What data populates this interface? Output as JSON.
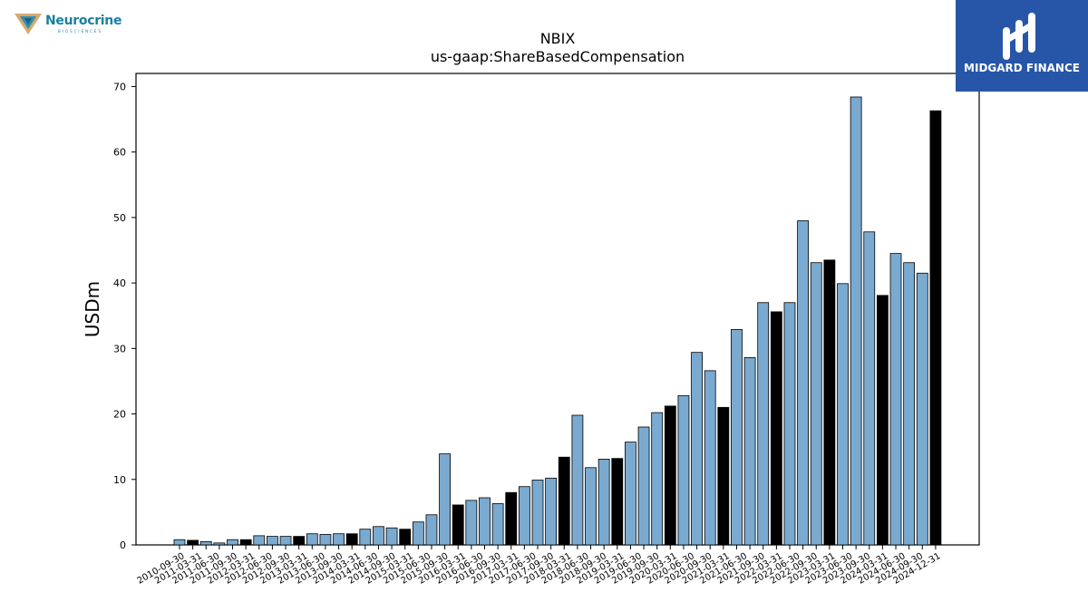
{
  "branding": {
    "company_logo_text": "Neurocrine",
    "company_logo_subtext": "BIOSCIENCES",
    "publisher_badge_text": "MIDGARD FINANCE"
  },
  "chart_data": {
    "type": "bar",
    "title": "NBIX",
    "subtitle": "us-gaap:ShareBasedCompensation",
    "xlabel": "",
    "ylabel": "USDm",
    "ylim": [
      0,
      72
    ],
    "yticks": [
      0,
      10,
      20,
      30,
      40,
      50,
      60,
      70
    ],
    "grid": false,
    "colors": {
      "quarterly": "#7aaad0",
      "annual": "#000000",
      "edge": "#000000"
    },
    "categories": [
      "2010-09-30",
      "2010-12-31",
      "2011-03-31",
      "2011-06-30",
      "2011-09-30",
      "2011-12-31",
      "2012-03-31",
      "2012-06-30",
      "2012-09-30",
      "2012-12-31",
      "2013-03-31",
      "2013-06-30",
      "2013-09-30",
      "2013-12-31",
      "2014-03-31",
      "2014-06-30",
      "2014-09-30",
      "2014-12-31",
      "2015-03-31",
      "2015-06-30",
      "2015-09-30",
      "2015-12-31",
      "2016-03-31",
      "2016-06-30",
      "2016-09-30",
      "2016-12-31",
      "2017-03-31",
      "2017-06-30",
      "2017-09-30",
      "2017-12-31",
      "2018-03-31",
      "2018-06-30",
      "2018-09-30",
      "2018-12-31",
      "2019-03-31",
      "2019-06-30",
      "2019-09-30",
      "2019-12-31",
      "2020-03-31",
      "2020-06-30",
      "2020-09-30",
      "2020-12-31",
      "2021-03-31",
      "2021-06-30",
      "2021-09-30",
      "2021-12-31",
      "2022-03-31",
      "2022-06-30",
      "2022-09-30",
      "2022-12-31",
      "2023-03-31",
      "2023-06-30",
      "2023-09-30",
      "2023-12-31",
      "2024-03-31",
      "2024-06-30",
      "2024-09-30",
      "2024-12-31"
    ],
    "xtick_labels": [
      "2010-09-30",
      "2011-03-31",
      "2011-06-30",
      "2011-09-30",
      "2012-03-31",
      "2012-06-30",
      "2012-09-30",
      "2013-03-31",
      "2013-06-30",
      "2013-09-30",
      "2014-03-31",
      "2014-06-30",
      "2014-09-30",
      "2015-03-31",
      "2015-06-30",
      "2015-09-30",
      "2016-03-31",
      "2016-06-30",
      "2016-09-30",
      "2017-03-31",
      "2017-06-30",
      "2017-09-30",
      "2018-03-31",
      "2018-06-30",
      "2018-09-30",
      "2019-03-31",
      "2019-06-30",
      "2019-09-30",
      "2020-03-31",
      "2020-06-30",
      "2020-09-30",
      "2021-03-31",
      "2021-06-30",
      "2021-09-30",
      "2022-03-31",
      "2022-06-30",
      "2022-09-30",
      "2023-03-31",
      "2023-06-30",
      "2023-09-30",
      "2024-03-31",
      "2024-06-30",
      "2024-09-30",
      "2024-12-31"
    ],
    "values": [
      0.8,
      0.7,
      0.5,
      0.3,
      0.8,
      0.8,
      1.4,
      1.3,
      1.3,
      1.3,
      1.7,
      1.6,
      1.7,
      1.7,
      2.4,
      2.8,
      2.6,
      2.4,
      3.5,
      4.6,
      13.9,
      6.1,
      6.8,
      7.2,
      6.3,
      8.0,
      8.9,
      9.9,
      10.2,
      13.4,
      19.8,
      11.8,
      13.1,
      13.2,
      15.7,
      18.0,
      20.2,
      21.2,
      22.8,
      29.4,
      26.6,
      21.0,
      32.9,
      28.6,
      37.0,
      35.6,
      37.0,
      49.5,
      43.1,
      43.5,
      39.9,
      68.4,
      47.8,
      38.1,
      44.5,
      43.1,
      41.5,
      66.3
    ],
    "annual_flags": [
      false,
      true,
      false,
      false,
      false,
      true,
      false,
      false,
      false,
      true,
      false,
      false,
      false,
      true,
      false,
      false,
      false,
      true,
      false,
      false,
      false,
      true,
      false,
      false,
      false,
      true,
      false,
      false,
      false,
      true,
      false,
      false,
      false,
      true,
      false,
      false,
      false,
      true,
      false,
      false,
      false,
      true,
      false,
      false,
      false,
      true,
      false,
      false,
      false,
      true,
      false,
      false,
      false,
      true,
      false,
      false,
      false,
      true
    ]
  }
}
